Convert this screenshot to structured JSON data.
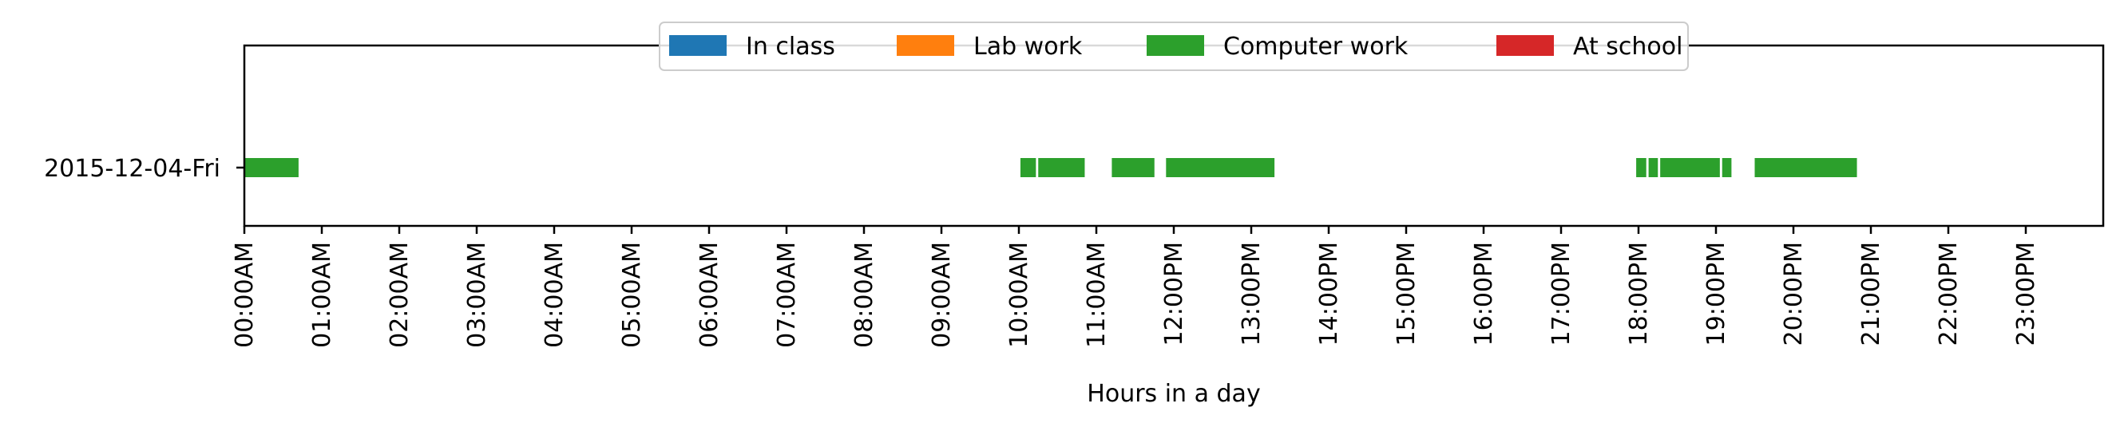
{
  "chart_data": {
    "type": "timeline",
    "xlabel": "Hours in a day",
    "ylabel": "",
    "xlim": [
      0,
      24
    ],
    "x_unit": "hours",
    "x_ticks": [
      0,
      1,
      2,
      3,
      4,
      5,
      6,
      7,
      8,
      9,
      10,
      11,
      12,
      13,
      14,
      15,
      16,
      17,
      18,
      19,
      20,
      21,
      22,
      23
    ],
    "x_tick_labels": [
      "00:00AM",
      "01:00AM",
      "02:00AM",
      "03:00AM",
      "04:00AM",
      "05:00AM",
      "06:00AM",
      "07:00AM",
      "08:00AM",
      "09:00AM",
      "10:00AM",
      "11:00AM",
      "12:00PM",
      "13:00PM",
      "14:00PM",
      "15:00PM",
      "16:00PM",
      "17:00PM",
      "18:00PM",
      "19:00PM",
      "20:00PM",
      "21:00PM",
      "22:00PM",
      "23:00PM"
    ],
    "categories": [
      "2015-12-04-Fri"
    ],
    "grid": false,
    "legend_placement": "top-center",
    "legend": [
      {
        "name": "In class",
        "color": "#1f77b4"
      },
      {
        "name": "Lab work",
        "color": "#ff7f0e"
      },
      {
        "name": "Computer work",
        "color": "#2ca02c"
      },
      {
        "name": "At school",
        "color": "#d62728"
      }
    ],
    "series": [
      {
        "name": "In class",
        "color": "#1f77b4",
        "segments": []
      },
      {
        "name": "Lab work",
        "color": "#ff7f0e",
        "segments": []
      },
      {
        "name": "Computer work",
        "color": "#2ca02c",
        "segments": [
          {
            "category": "2015-12-04-Fri",
            "start": 0.0,
            "end": 0.7
          },
          {
            "category": "2015-12-04-Fri",
            "start": 10.02,
            "end": 10.22
          },
          {
            "category": "2015-12-04-Fri",
            "start": 10.25,
            "end": 10.85
          },
          {
            "category": "2015-12-04-Fri",
            "start": 11.2,
            "end": 11.75
          },
          {
            "category": "2015-12-04-Fri",
            "start": 11.9,
            "end": 13.3
          },
          {
            "category": "2015-12-04-Fri",
            "start": 17.97,
            "end": 18.1
          },
          {
            "category": "2015-12-04-Fri",
            "start": 18.13,
            "end": 18.25
          },
          {
            "category": "2015-12-04-Fri",
            "start": 18.28,
            "end": 19.05
          },
          {
            "category": "2015-12-04-Fri",
            "start": 19.08,
            "end": 19.2
          },
          {
            "category": "2015-12-04-Fri",
            "start": 19.5,
            "end": 20.82
          }
        ]
      },
      {
        "name": "At school",
        "color": "#d62728",
        "segments": []
      }
    ]
  }
}
